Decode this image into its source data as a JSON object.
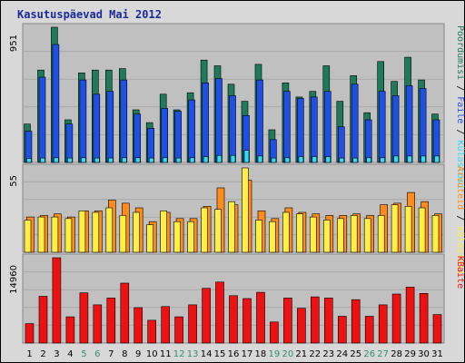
{
  "chart_data": {
    "title": "Kasutuspäevad Mai 2012",
    "days": [
      "1",
      "2",
      "3",
      "4",
      "5",
      "6",
      "7",
      "8",
      "9",
      "10",
      "11",
      "12",
      "13",
      "14",
      "15",
      "16",
      "17",
      "18",
      "19",
      "20",
      "21",
      "22",
      "23",
      "24",
      "25",
      "26",
      "27",
      "28",
      "29",
      "30",
      "31"
    ],
    "weekend_days": [
      "5",
      "6",
      "12",
      "13",
      "19",
      "20",
      "26",
      "27"
    ],
    "panels": [
      {
        "type": "bar",
        "ymax_label": "951",
        "ymax": 951,
        "legend": [
          "Pöördumisi",
          "Faile",
          "Külastusi"
        ],
        "series": [
          {
            "name": "Pöördumisi",
            "color": "#1e7a5a",
            "values": [
              270,
              650,
              951,
              300,
              630,
              650,
              650,
              660,
              370,
              280,
              480,
              370,
              490,
              720,
              680,
              550,
              430,
              690,
              230,
              560,
              460,
              500,
              680,
              430,
              610,
              350,
              710,
              570,
              740,
              580,
              340
            ]
          },
          {
            "name": "Faile",
            "color": "#1e50e6",
            "values": [
              220,
              600,
              830,
              270,
              580,
              480,
              500,
              580,
              340,
              240,
              380,
              360,
              440,
              560,
              590,
              470,
              330,
              580,
              160,
              500,
              450,
              460,
              500,
              250,
              550,
              300,
              500,
              470,
              540,
              520,
              300
            ]
          },
          {
            "name": "Külastusi",
            "color": "#33ddee",
            "values": [
              28,
              31,
              33,
              31,
              33,
              31,
              31,
              33,
              33,
              31,
              33,
              31,
              33,
              41,
              50,
              50,
              85,
              45,
              31,
              33,
              41,
              41,
              41,
              31,
              31,
              33,
              33,
              45,
              45,
              45,
              45
            ]
          }
        ]
      },
      {
        "type": "bar",
        "ymax_label": "55",
        "ymax": 55,
        "legend": [
          "Arvuteid",
          "Külastusi"
        ],
        "series": [
          {
            "name": "Arvuteid",
            "color": "#ff8c1a",
            "values": [
              23,
              24,
              25,
              23,
              27,
              27,
              34,
              32,
              29,
              20,
              26,
              22,
              22,
              30,
              42,
              31,
              47,
              27,
              22,
              29,
              26,
              25,
              24,
              24,
              25,
              24,
              31,
              32,
              39,
              33,
              25
            ]
          },
          {
            "name": "Külastusi",
            "color": "#ffee44",
            "values": [
              21,
              23,
              23,
              22,
              27,
              26,
              29,
              24,
              26,
              18,
              27,
              20,
              20,
              29,
              28,
              33,
              55,
              21,
              20,
              26,
              25,
              23,
              21,
              22,
              24,
              22,
              24,
              31,
              30,
              29,
              24
            ]
          }
        ]
      },
      {
        "type": "bar",
        "ymax_label": "14960",
        "ymax": 14960,
        "legend": [
          "KBaite"
        ],
        "series": [
          {
            "name": "KBaite",
            "color": "#ee1111",
            "values": [
              3400,
              8200,
              14960,
              4600,
              8800,
              6700,
              7900,
              10500,
              6200,
              4000,
              6400,
              4600,
              6700,
              9600,
              10700,
              8300,
              7800,
              8900,
              3700,
              7900,
              6100,
              8100,
              7900,
              4700,
              7600,
              4700,
              6700,
              8600,
              9800,
              8700,
              5000
            ]
          }
        ]
      }
    ]
  }
}
